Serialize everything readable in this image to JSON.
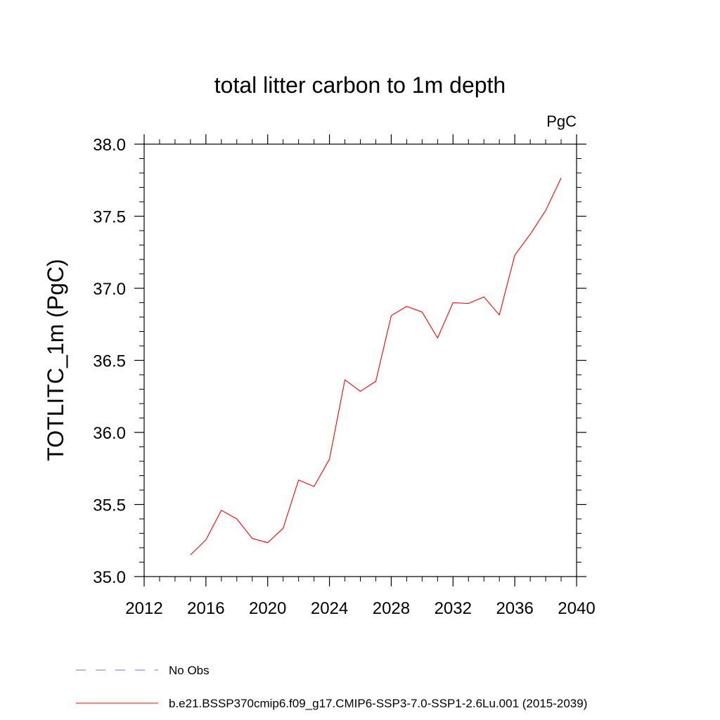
{
  "chart_data": {
    "type": "line",
    "title": "total litter carbon to 1m depth",
    "units_label": "PgC",
    "xlabel": "",
    "ylabel": "TOTLITC_1m  (PgC)",
    "xlim": [
      2012,
      2040
    ],
    "ylim": [
      35.0,
      38.0
    ],
    "x_ticks": [
      2012,
      2016,
      2020,
      2024,
      2028,
      2032,
      2036,
      2040
    ],
    "x_tick_labels": [
      "2012",
      "2016",
      "2020",
      "2024",
      "2028",
      "2032",
      "2036",
      "2040"
    ],
    "y_ticks": [
      35.0,
      35.5,
      36.0,
      36.5,
      37.0,
      37.5,
      38.0
    ],
    "y_tick_labels": [
      "35.0",
      "35.5",
      "36.0",
      "36.5",
      "37.0",
      "37.5",
      "38.0"
    ],
    "grid": false,
    "legend_position": "bottom",
    "series": [
      {
        "name": "b.e21.BSSP370cmip6.f09_g17.CMIP6-SSP3-7.0-SSP1-2.6Lu.001 (2015-2039)",
        "color": "#ff0000",
        "x": [
          2015,
          2016,
          2017,
          2018,
          2019,
          2020,
          2021,
          2022,
          2023,
          2024,
          2025,
          2026,
          2027,
          2028,
          2029,
          2030,
          2031,
          2032,
          2033,
          2034,
          2035,
          2036,
          2037,
          2038,
          2039
        ],
        "y": [
          35.15,
          35.255,
          35.46,
          35.4,
          35.265,
          35.235,
          35.335,
          35.67,
          35.625,
          35.815,
          36.365,
          36.285,
          36.355,
          36.81,
          36.875,
          36.835,
          36.655,
          36.9,
          36.895,
          36.94,
          36.815,
          37.23,
          37.375,
          37.54,
          37.765
        ]
      }
    ],
    "legend": [
      {
        "label": "No Obs",
        "color": "#7b6fc9",
        "style": "dashed"
      },
      {
        "label": "b.e21.BSSP370cmip6.f09_g17.CMIP6-SSP3-7.0-SSP1-2.6Lu.001 (2015-2039)",
        "color": "#ff0000",
        "style": "solid"
      }
    ]
  }
}
